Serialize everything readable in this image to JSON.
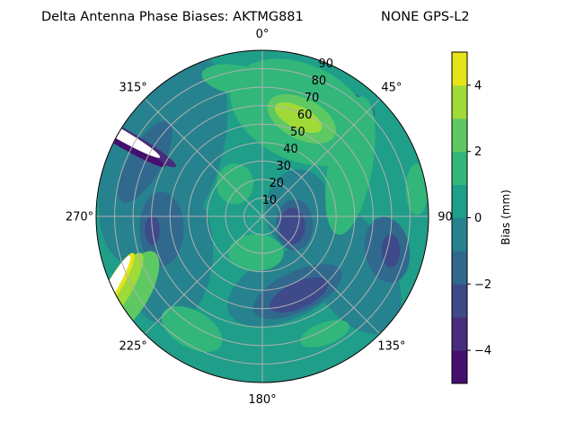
{
  "chart_data": {
    "type": "contour",
    "projection": "polar",
    "title_left": "Delta Antenna Phase Biases: AKTMG881",
    "title_right": "NONE GPS-L2",
    "theta_direction": "clockwise",
    "theta_zero": "top",
    "theta_tick_labels": [
      "0°",
      "45°",
      "90",
      "135°",
      "180°",
      "225°",
      "270°",
      "315°"
    ],
    "theta_ticks": [
      0,
      45,
      90,
      135,
      180,
      225,
      270,
      315
    ],
    "r_ticks": [
      10,
      20,
      30,
      40,
      50,
      60,
      70,
      80,
      90
    ],
    "r_tick_labels": [
      "10",
      "20",
      "30",
      "40",
      "50",
      "60",
      "70",
      "80",
      "90"
    ],
    "rlim": [
      0,
      90
    ],
    "grid": true,
    "colormap": "viridis",
    "levels": [
      -5,
      -4,
      -3,
      -2,
      -1,
      0,
      1,
      2,
      3,
      4,
      5
    ],
    "band_colors": [
      "#450f6e",
      "#472d7b",
      "#3e4a89",
      "#31688e",
      "#26828e",
      "#1f9e89",
      "#32b67a",
      "#5ec962",
      "#a0da39",
      "#e5e419"
    ],
    "colorbar": {
      "label": "Bias (mm)",
      "ticks": [
        -4,
        -2,
        0,
        2,
        4
      ],
      "tick_labels": [
        "−4",
        "−2",
        "0",
        "2",
        "4"
      ],
      "range": [
        -5,
        5
      ]
    },
    "background_value": 0.5,
    "features": [
      {
        "theta": 300,
        "r": 62,
        "value": -0.5,
        "rx": 30,
        "ry": 60,
        "rot": 20
      },
      {
        "theta": 250,
        "r": 55,
        "value": -0.5,
        "rx": 25,
        "ry": 40,
        "rot": 0
      },
      {
        "theta": 120,
        "r": 55,
        "value": -0.5,
        "rx": 40,
        "ry": 22,
        "rot": 60
      },
      {
        "theta": 160,
        "r": 40,
        "value": -0.5,
        "rx": 35,
        "ry": 18,
        "rot": -25
      },
      {
        "theta": 80,
        "r": 20,
        "value": -0.5,
        "rx": 18,
        "ry": 22,
        "rot": 0
      },
      {
        "theta": 30,
        "r": 75,
        "value": -0.5,
        "rx": 18,
        "ry": 9,
        "rot": 30
      },
      {
        "theta": 295,
        "r": 70,
        "value": -1.5,
        "rx": 25,
        "ry": 9,
        "rot": -60
      },
      {
        "theta": 263,
        "r": 55,
        "value": -1.5,
        "rx": 12,
        "ry": 20,
        "rot": 0
      },
      {
        "theta": 105,
        "r": 70,
        "value": -1.5,
        "rx": 18,
        "ry": 12,
        "rot": 80
      },
      {
        "theta": 155,
        "r": 45,
        "value": -1.5,
        "rx": 26,
        "ry": 11,
        "rot": -25
      },
      {
        "theta": 105,
        "r": 18,
        "value": -1.5,
        "rx": 10,
        "ry": 14,
        "rot": 0
      },
      {
        "theta": 40,
        "r": 78,
        "value": -1.5,
        "rx": 12,
        "ry": 6,
        "rot": 30
      },
      {
        "theta": 108,
        "r": 17,
        "value": -2.5,
        "rx": 7,
        "ry": 10,
        "rot": 0
      },
      {
        "theta": 263,
        "r": 60,
        "value": -2.5,
        "rx": 4,
        "ry": 8,
        "rot": 0
      },
      {
        "theta": 105,
        "r": 72,
        "value": -2.5,
        "rx": 5,
        "ry": 9,
        "rot": 0
      },
      {
        "theta": 155,
        "r": 47,
        "value": -2.5,
        "rx": 17,
        "ry": 7,
        "rot": -25
      },
      {
        "theta": 20,
        "r": 60,
        "value": 1.5,
        "rx": 40,
        "ry": 26,
        "rot": 25
      },
      {
        "theta": 60,
        "r": 55,
        "value": 1.5,
        "rx": 12,
        "ry": 38,
        "rot": 10
      },
      {
        "theta": 350,
        "r": 75,
        "value": 1.5,
        "rx": 20,
        "ry": 8,
        "rot": 10
      },
      {
        "theta": 320,
        "r": 23,
        "value": 1.5,
        "rx": 10,
        "ry": 11,
        "rot": 0
      },
      {
        "theta": 190,
        "r": 20,
        "value": 1.5,
        "rx": 15,
        "ry": 10,
        "rot": 0
      },
      {
        "theta": 152,
        "r": 72,
        "value": 1.5,
        "rx": 14,
        "ry": 6,
        "rot": -20
      },
      {
        "theta": 212,
        "r": 72,
        "value": 1.5,
        "rx": 18,
        "ry": 10,
        "rot": 30
      },
      {
        "theta": 80,
        "r": 85,
        "value": 1.5,
        "rx": 6,
        "ry": 14,
        "rot": 0
      },
      {
        "theta": 22,
        "r": 57,
        "value": 2.5,
        "rx": 20,
        "ry": 11,
        "rot": 27
      },
      {
        "theta": 240,
        "r": 82,
        "value": 2.5,
        "rx": 10,
        "ry": 25,
        "rot": 30
      },
      {
        "theta": 20,
        "r": 57,
        "value": 3.5,
        "rx": 14,
        "ry": 6,
        "rot": 27
      },
      {
        "theta": 243,
        "r": 86,
        "value": 3.5,
        "rx": 6,
        "ry": 22,
        "rot": 30
      },
      {
        "theta": 245,
        "r": 88,
        "value": 4.5,
        "rx": 4,
        "ry": 20,
        "rot": 30
      },
      {
        "theta": 300,
        "r": 84,
        "value": -3.5,
        "rx": 4,
        "ry": 30,
        "rot": -60
      },
      {
        "theta": 298,
        "r": 87,
        "value": -4.5,
        "rx": 3,
        "ry": 28,
        "rot": -60
      }
    ],
    "masked_regions": [
      {
        "theta": 300,
        "r": 92,
        "rx": 3,
        "ry": 28,
        "rot": -60
      },
      {
        "theta": 244,
        "r": 92,
        "rx": 3,
        "ry": 22,
        "rot": 30
      }
    ]
  }
}
